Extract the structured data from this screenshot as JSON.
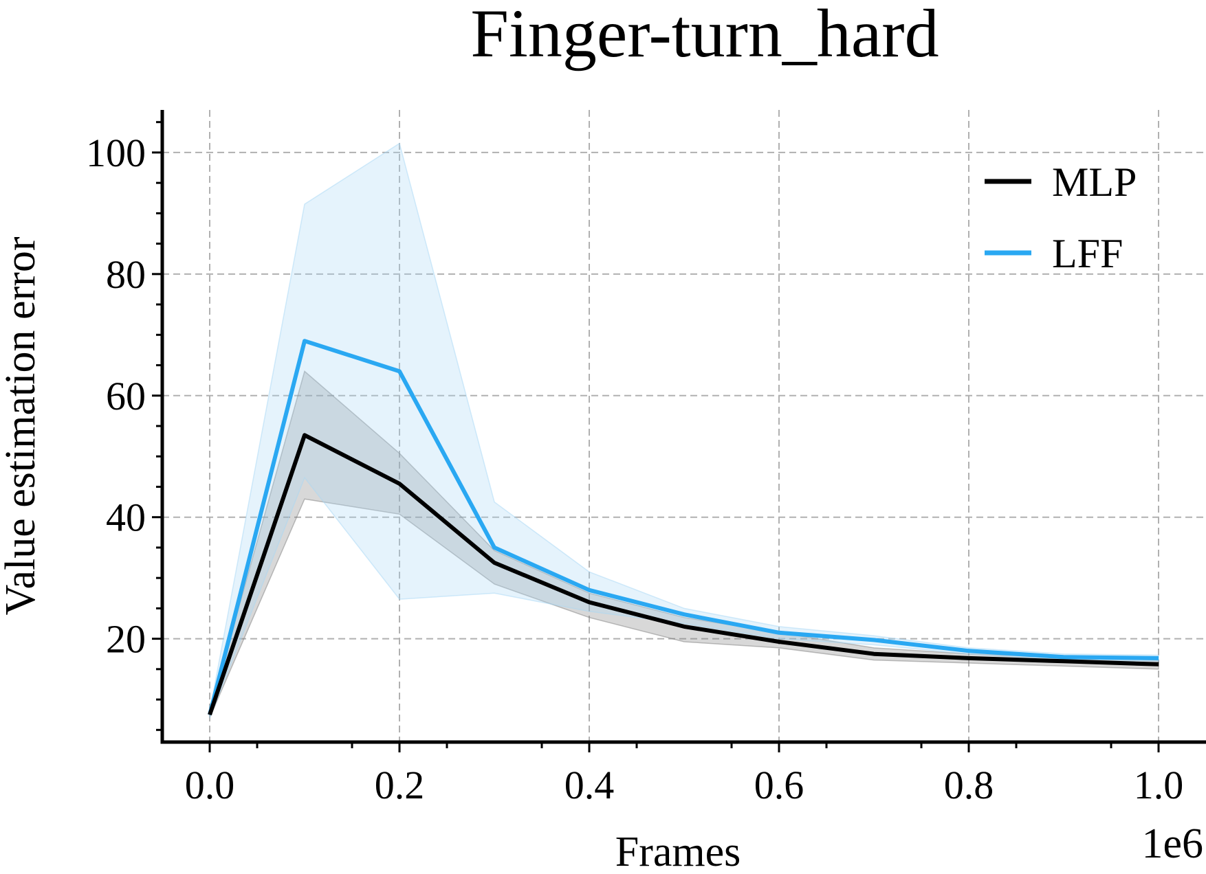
{
  "chart_data": {
    "type": "line",
    "title": "Finger-turn_hard",
    "xlabel": "Frames",
    "ylabel": "Value estimation error",
    "x_offset_label": "1e6",
    "xlim": [
      -0.05,
      1.05
    ],
    "ylim": [
      3,
      107
    ],
    "x_ticks": [
      0.0,
      0.2,
      0.4,
      0.6,
      0.8,
      1.0
    ],
    "x_tick_labels": [
      "0.0",
      "0.2",
      "0.4",
      "0.6",
      "0.8",
      "1.0"
    ],
    "y_ticks": [
      20,
      40,
      60,
      80,
      100
    ],
    "y_tick_labels": [
      "20",
      "40",
      "60",
      "80",
      "100"
    ],
    "grid": true,
    "legend_position": "top-right",
    "x": [
      0.0,
      0.1,
      0.2,
      0.3,
      0.4,
      0.5,
      0.6,
      0.7,
      0.8,
      0.9,
      1.0
    ],
    "series": [
      {
        "name": "MLP",
        "color": "#000000",
        "band_color": "#7f7f7f",
        "values": [
          7.5,
          53.5,
          45.5,
          32.5,
          26.0,
          22.0,
          19.5,
          17.5,
          16.8,
          16.3,
          15.8
        ],
        "lower": [
          7.0,
          43.0,
          40.5,
          29.0,
          23.5,
          19.5,
          18.5,
          16.5,
          16.0,
          15.5,
          15.0
        ],
        "upper": [
          8.0,
          64.0,
          50.5,
          34.5,
          27.5,
          23.5,
          21.0,
          18.5,
          17.5,
          17.0,
          16.5
        ]
      },
      {
        "name": "LFF",
        "color": "#2aa8f2",
        "band_color": "#a8d8f5",
        "values": [
          7.5,
          69.0,
          64.0,
          35.0,
          28.0,
          24.0,
          21.0,
          19.8,
          18.0,
          17.0,
          16.8
        ],
        "lower": [
          7.0,
          46.5,
          26.5,
          27.5,
          24.5,
          22.5,
          20.0,
          19.0,
          17.5,
          16.5,
          16.3
        ],
        "upper": [
          8.0,
          91.5,
          101.5,
          42.5,
          31.0,
          25.0,
          22.0,
          20.5,
          18.5,
          17.5,
          17.3
        ]
      }
    ]
  }
}
